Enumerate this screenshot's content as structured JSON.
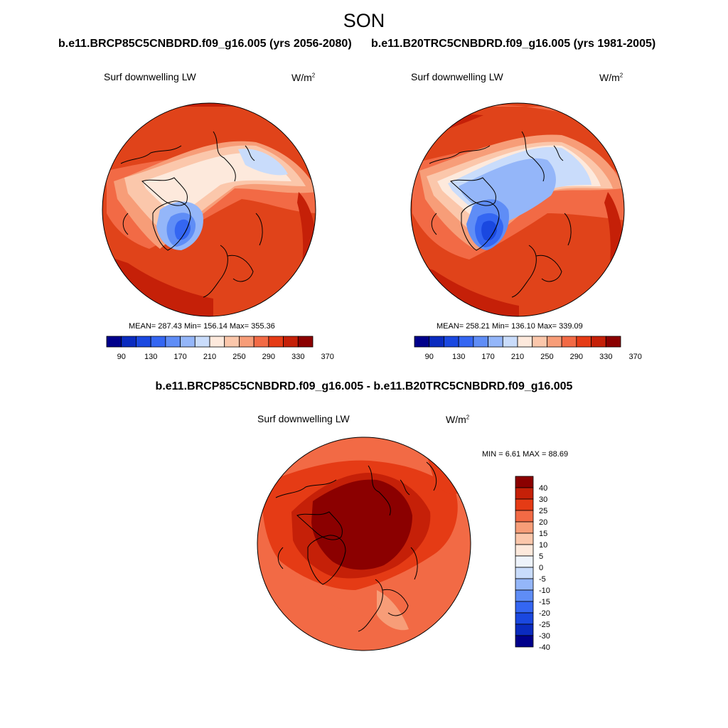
{
  "title": "SON",
  "left_case": "b.e11.BRCP85C5CNBDRD.f09_g16.005 (yrs 2056-2080)",
  "right_case": "b.e11.B20TRC5CNBDRD.f09_g16.005 (yrs 1981-2005)",
  "diff_case": "b.e11.BRCP85C5CNBDRD.f09_g16.005 - b.e11.B20TRC5CNBDRD.f09_g16.005",
  "variable": "Surf downwelling LW",
  "units_base": "W/m",
  "units_exp": "2",
  "panels": {
    "left": {
      "stats": "MEAN= 287.43  Min= 156.14  Max= 355.36"
    },
    "right": {
      "stats": "MEAN= 258.21  Min= 136.10  Max= 339.09"
    },
    "diff": {
      "stats": "MIN =   6.61 MAX =  88.69"
    }
  },
  "colorbar_abs": {
    "colors": [
      "#00008b",
      "#0a2bbf",
      "#1a48e0",
      "#3466f2",
      "#5f8df6",
      "#94b6f9",
      "#c9dcfb",
      "#fde9dc",
      "#fbc7ab",
      "#f79d78",
      "#f26a45",
      "#e53b15",
      "#c52008",
      "#8b0000"
    ],
    "labels": [
      "90",
      "130",
      "170",
      "210",
      "250",
      "290",
      "330",
      "370"
    ]
  },
  "colorbar_diff": {
    "colors": [
      "#8b0000",
      "#c52008",
      "#e53b15",
      "#f26a45",
      "#f79d78",
      "#fbc7ab",
      "#fde9dc",
      "#eef3fb",
      "#c9dcfb",
      "#94b6f9",
      "#5f8df6",
      "#3466f2",
      "#1a48e0",
      "#0a2bbf",
      "#00008b"
    ],
    "labels": [
      "40",
      "30",
      "25",
      "20",
      "15",
      "10",
      "5",
      "0",
      "-5",
      "-10",
      "-15",
      "-20",
      "-25",
      "-30",
      "-40"
    ]
  }
}
